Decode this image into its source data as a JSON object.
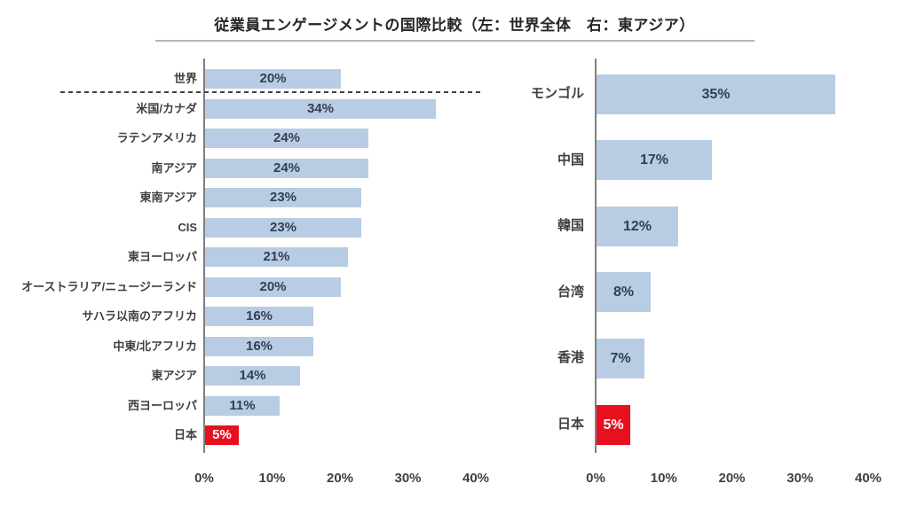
{
  "title": "従業員エンゲージメントの国際比較（左：世界全体　右：東アジア）",
  "colors": {
    "bar_fill": "#b8cce4",
    "highlight_fill": "#e8101e",
    "value_text": "#333f50",
    "highlight_value_text": "#ffffff",
    "label_text": "#404040",
    "axis_line": "#7f7f7f",
    "title_underline": "#b5b5b5",
    "dashed_line": "#404040"
  },
  "chart_data": [
    {
      "id": "world-overall",
      "type": "bar",
      "orientation": "horizontal",
      "title": "世界全体",
      "categories": [
        "世界",
        "米国/カナダ",
        "ラテンアメリカ",
        "南アジア",
        "東南アジア",
        "CIS",
        "東ヨーロッパ",
        "オーストラリア/ニュージーランド",
        "サハラ以南のアフリカ",
        "中東/北アフリカ",
        "東アジア",
        "西ヨーロッパ",
        "日本"
      ],
      "values": [
        20,
        34,
        24,
        24,
        23,
        23,
        21,
        20,
        16,
        16,
        14,
        11,
        5
      ],
      "value_labels": [
        "20%",
        "34%",
        "24%",
        "24%",
        "23%",
        "23%",
        "21%",
        "20%",
        "16%",
        "16%",
        "14%",
        "11%",
        "5%"
      ],
      "highlight_category": "日本",
      "xlim": [
        0,
        40
      ],
      "x_ticks": [
        0,
        10,
        20,
        30,
        40
      ],
      "x_tick_labels": [
        "0%",
        "10%",
        "20%",
        "30%",
        "40%"
      ],
      "separator_after_index": 0,
      "grid": false,
      "legend": false
    },
    {
      "id": "east-asia",
      "type": "bar",
      "orientation": "horizontal",
      "title": "東アジア",
      "categories": [
        "モンゴル",
        "中国",
        "韓国",
        "台湾",
        "香港",
        "日本"
      ],
      "values": [
        35,
        17,
        12,
        8,
        7,
        5
      ],
      "value_labels": [
        "35%",
        "17%",
        "12%",
        "8%",
        "7%",
        "5%"
      ],
      "highlight_category": "日本",
      "xlim": [
        0,
        40
      ],
      "x_ticks": [
        0,
        10,
        20,
        30,
        40
      ],
      "x_tick_labels": [
        "0%",
        "10%",
        "20%",
        "30%",
        "40%"
      ],
      "separator_after_index": null,
      "grid": false,
      "legend": false
    }
  ]
}
